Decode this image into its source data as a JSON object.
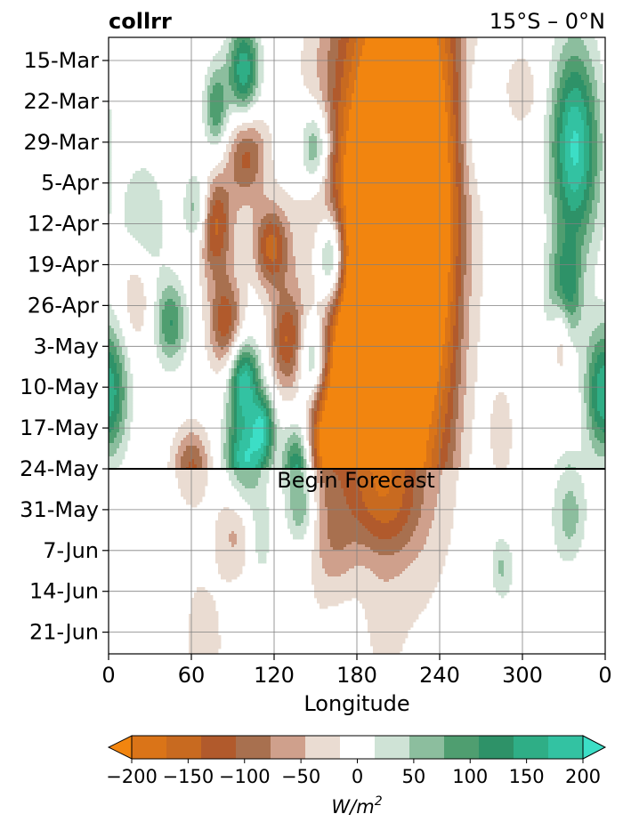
{
  "chart_data": {
    "type": "heatmap",
    "title": "collrr",
    "subtitle": "15°S – 0°N",
    "xlabel": "Longitude",
    "ylabel": "",
    "x_ticks": [
      "0",
      "60",
      "120",
      "180",
      "240",
      "300",
      "0"
    ],
    "y_ticks": [
      "15-Mar",
      "22-Mar",
      "29-Mar",
      "5-Apr",
      "12-Apr",
      "19-Apr",
      "26-Apr",
      "3-May",
      "10-May",
      "17-May",
      "24-May",
      "31-May",
      "7-Jun",
      "14-Jun",
      "21-Jun"
    ],
    "xlim": [
      0,
      360
    ],
    "annotation": "Begin Forecast",
    "forecast_start": "24-May",
    "grid": true,
    "colorbar": {
      "label": "W/m",
      "label_sup": "2",
      "ticks": [
        "−200",
        "−150",
        "−100",
        "−50",
        "0",
        "50",
        "100",
        "150",
        "200"
      ],
      "levels": [
        -200,
        -175,
        -150,
        -125,
        -100,
        -75,
        -50,
        -25,
        25,
        50,
        75,
        100,
        125,
        150,
        175,
        200
      ],
      "colors": [
        "#f2850f",
        "#da7418",
        "#c86a20",
        "#b15a2c",
        "#a8704f",
        "#cfa08c",
        "#eadcd2",
        "#ffffff",
        "#cfe3d6",
        "#8cbe9e",
        "#4f9e70",
        "#2e9268",
        "#2fae86",
        "#33c2a2",
        "#3cdec6"
      ],
      "extend": "both"
    },
    "features": [
      {
        "lon": 205,
        "day": 10,
        "v": -190,
        "sl": 32,
        "sd": 30
      },
      {
        "lon": 195,
        "day": 36,
        "v": -150,
        "sl": 25,
        "sd": 20
      },
      {
        "lon": 195,
        "day": 55,
        "v": -130,
        "sl": 22,
        "sd": 20
      },
      {
        "lon": 225,
        "day": 35,
        "v": -105,
        "sl": 20,
        "sd": 45
      },
      {
        "lon": 180,
        "day": 52,
        "v": -90,
        "sl": 14,
        "sd": 8
      },
      {
        "lon": 155,
        "day": 65,
        "v": -140,
        "sl": 12,
        "sd": 8
      },
      {
        "lon": 190,
        "day": 65,
        "v": -110,
        "sl": 20,
        "sd": 10
      },
      {
        "lon": 200,
        "day": 77,
        "v": -130,
        "sl": 18,
        "sd": 6
      },
      {
        "lon": 162,
        "day": 83,
        "v": -120,
        "sl": 12,
        "sd": 7
      },
      {
        "lon": 100,
        "day": 16,
        "v": -110,
        "sl": 10,
        "sd": 6
      },
      {
        "lon": 75,
        "day": 28,
        "v": -150,
        "sl": 10,
        "sd": 6
      },
      {
        "lon": 118,
        "day": 32,
        "v": -130,
        "sl": 9,
        "sd": 5
      },
      {
        "lon": 85,
        "day": 45,
        "v": -120,
        "sl": 9,
        "sd": 6
      },
      {
        "lon": 130,
        "day": 48,
        "v": -120,
        "sl": 9,
        "sd": 6
      },
      {
        "lon": 92,
        "day": 80,
        "v": -140,
        "sl": 10,
        "sd": 6
      },
      {
        "lon": 60,
        "day": 70,
        "v": -100,
        "sl": 10,
        "sd": 5
      },
      {
        "lon": 20,
        "day": 40,
        "v": -60,
        "sl": 8,
        "sd": 6
      },
      {
        "lon": 245,
        "day": 35,
        "v": -40,
        "sl": 8,
        "sd": 30
      },
      {
        "lon": 285,
        "day": 64,
        "v": -45,
        "sl": 6,
        "sd": 6
      },
      {
        "lon": 328,
        "day": 45,
        "v": -90,
        "sl": 5,
        "sd": 6
      },
      {
        "lon": 300,
        "day": 5,
        "v": -40,
        "sl": 10,
        "sd": 5
      },
      {
        "lon": 350,
        "day": 90,
        "v": -30,
        "sl": 15,
        "sd": 15
      },
      {
        "lon": 72,
        "day": 100,
        "v": -70,
        "sl": 12,
        "sd": 10
      },
      {
        "lon": 62,
        "day": 120,
        "v": -40,
        "sl": 6,
        "sd": 25
      },
      {
        "lon": 198,
        "day": 98,
        "v": -50,
        "sl": 10,
        "sd": 8
      },
      {
        "lon": 150,
        "day": 98,
        "v": -30,
        "sl": 8,
        "sd": 6
      },
      {
        "lon": 110,
        "day": 104,
        "v": -25,
        "sl": 10,
        "sd": 6
      },
      {
        "lon": 338,
        "day": 15,
        "v": 180,
        "sl": 12,
        "sd": 12
      },
      {
        "lon": 330,
        "day": 40,
        "v": 140,
        "sl": 8,
        "sd": 6
      },
      {
        "lon": 335,
        "day": 78,
        "v": 150,
        "sl": 9,
        "sd": 6
      },
      {
        "lon": 285,
        "day": 87,
        "v": 120,
        "sl": 6,
        "sd": 4
      },
      {
        "lon": 98,
        "day": 70,
        "v": 190,
        "sl": 10,
        "sd": 6
      },
      {
        "lon": 138,
        "day": 70,
        "v": 170,
        "sl": 8,
        "sd": 6
      },
      {
        "lon": 162,
        "day": 34,
        "v": 180,
        "sl": 8,
        "sd": 6
      },
      {
        "lon": 65,
        "day": 26,
        "v": 120,
        "sl": 7,
        "sd": 5
      },
      {
        "lon": 98,
        "day": 55,
        "v": 170,
        "sl": 8,
        "sd": 5
      },
      {
        "lon": 148,
        "day": 52,
        "v": 130,
        "sl": 8,
        "sd": 6
      },
      {
        "lon": 112,
        "day": 63,
        "v": 140,
        "sl": 6,
        "sd": 4
      },
      {
        "lon": 98,
        "day": 2,
        "v": 150,
        "sl": 8,
        "sd": 6
      },
      {
        "lon": 78,
        "day": 8,
        "v": 100,
        "sl": 6,
        "sd": 5
      },
      {
        "lon": 150,
        "day": 15,
        "v": 120,
        "sl": 8,
        "sd": 5
      },
      {
        "lon": 140,
        "day": 78,
        "v": 110,
        "sl": 7,
        "sd": 4
      },
      {
        "lon": 110,
        "day": 82,
        "v": 100,
        "sl": 6,
        "sd": 5
      },
      {
        "lon": 45,
        "day": 45,
        "v": 100,
        "sl": 8,
        "sd": 5
      },
      {
        "lon": 5,
        "day": 57,
        "v": 80,
        "sl": 8,
        "sd": 8
      },
      {
        "lon": 355,
        "day": 57,
        "v": 100,
        "sl": 8,
        "sd": 8
      },
      {
        "lon": 25,
        "day": 28,
        "v": 50,
        "sl": 12,
        "sd": 8
      },
      {
        "lon": 268,
        "day": 10,
        "v": 45,
        "sl": 10,
        "sd": 8
      },
      {
        "lon": 322,
        "day": 115,
        "v": 35,
        "sl": 12,
        "sd": 20
      },
      {
        "lon": 160,
        "day": 108,
        "v": 30,
        "sl": 4,
        "sd": 6
      },
      {
        "lon": 116,
        "day": 108,
        "v": 30,
        "sl": 4,
        "sd": 5
      },
      {
        "lon": 185,
        "day": 125,
        "v": 20,
        "sl": 10,
        "sd": 12
      }
    ]
  }
}
